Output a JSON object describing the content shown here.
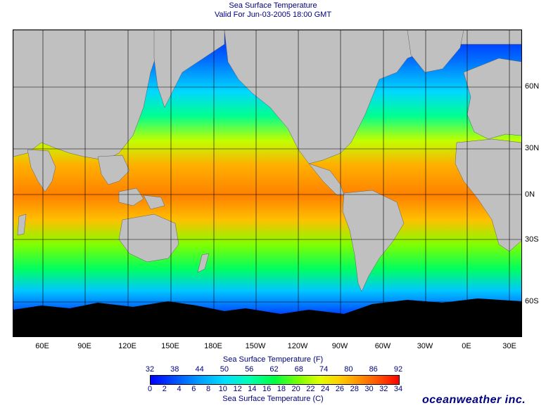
{
  "header": {
    "title": "Sea Surface Temperature",
    "subtitle": "Valid For Jun-03-2005 18:00 GMT"
  },
  "map": {
    "lat_labels": [
      "60N",
      "30N",
      "0N",
      "30S",
      "60S"
    ],
    "lon_labels": [
      "60E",
      "90E",
      "120E",
      "150E",
      "180E",
      "150W",
      "120W",
      "90W",
      "60W",
      "30W",
      "0E",
      "30E"
    ],
    "colors": {
      "land": "#c0c0c0",
      "ice": "#000000",
      "grid": "#000000",
      "cold": "#0030ff",
      "cool": "#00c8ff",
      "mid": "#00ff60",
      "warm": "#ffd000",
      "hot": "#ff8000"
    }
  },
  "legend": {
    "fahrenheit_title": "Sea Surface Temperature (F)",
    "celsius_title": "Sea Surface Temperature (C)",
    "fahrenheit_ticks": [
      "32",
      "38",
      "44",
      "50",
      "56",
      "62",
      "68",
      "74",
      "80",
      "86",
      "92"
    ],
    "celsius_ticks": [
      "0",
      "2",
      "4",
      "6",
      "8",
      "10",
      "12",
      "14",
      "16",
      "18",
      "20",
      "22",
      "24",
      "26",
      "28",
      "30",
      "32",
      "34"
    ]
  },
  "brand": "oceanweather inc."
}
